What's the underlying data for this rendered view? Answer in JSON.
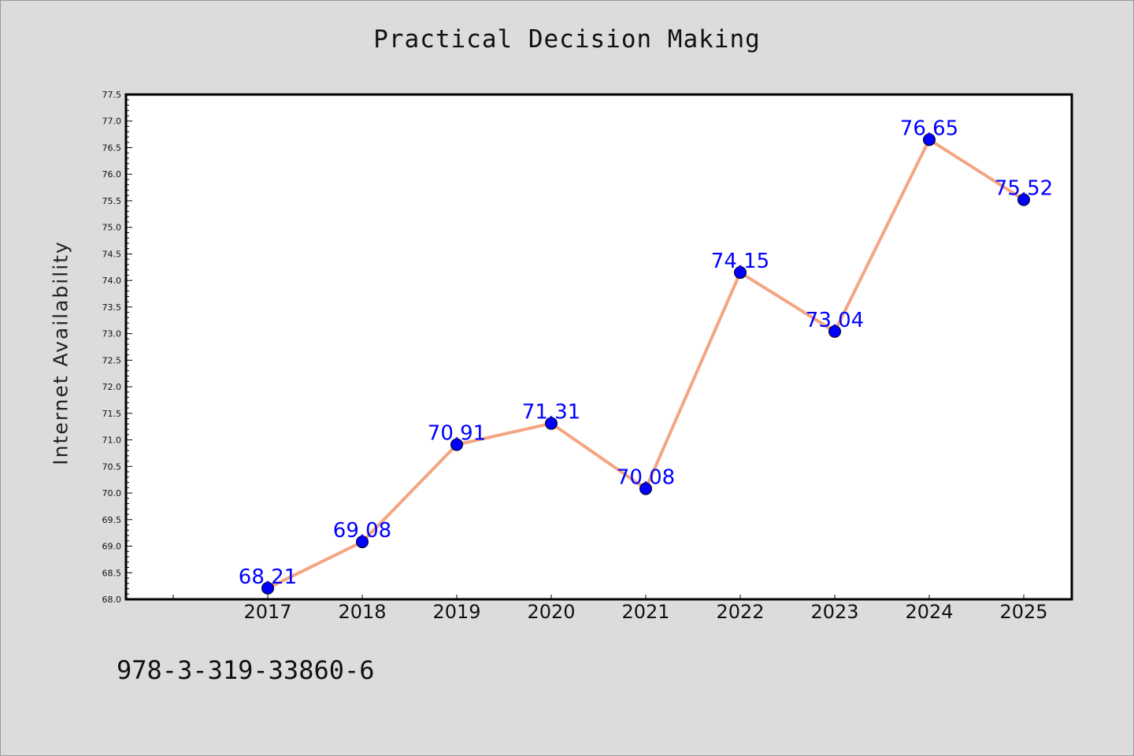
{
  "chart_data": {
    "type": "line",
    "title": "Practical Decision Making",
    "xlabel": "",
    "ylabel": "Internet Availability",
    "categories": [
      "2017",
      "2018",
      "2019",
      "2020",
      "2021",
      "2022",
      "2023",
      "2024",
      "2025"
    ],
    "series": [
      {
        "values": [
          68.21,
          69.08,
          70.91,
          71.31,
          70.08,
          74.15,
          73.04,
          76.65,
          75.52
        ]
      }
    ],
    "data_labels": [
      "68.21",
      "69.08",
      "70.91",
      "71.31",
      "70.08",
      "74.15",
      "73.04",
      "76.65",
      "75.52"
    ],
    "ylim": [
      68.0,
      77.5
    ],
    "y_major_ticks": [
      "68.0",
      "68.5",
      "69.0",
      "69.5",
      "70.0",
      "70.5",
      "71.0",
      "71.5",
      "72.0",
      "72.5",
      "73.0",
      "73.5",
      "74.0",
      "74.5",
      "75.0",
      "75.5",
      "76.0",
      "76.5",
      "77.0",
      "77.5"
    ],
    "grid": false,
    "line_color": "#f4a582",
    "marker_color": "#0000ff",
    "label_color": "#0000ff",
    "background_color": "#dcdcdc",
    "plot_background": "#ffffff"
  },
  "footer": {
    "code": "978-3-319-33860-6"
  }
}
